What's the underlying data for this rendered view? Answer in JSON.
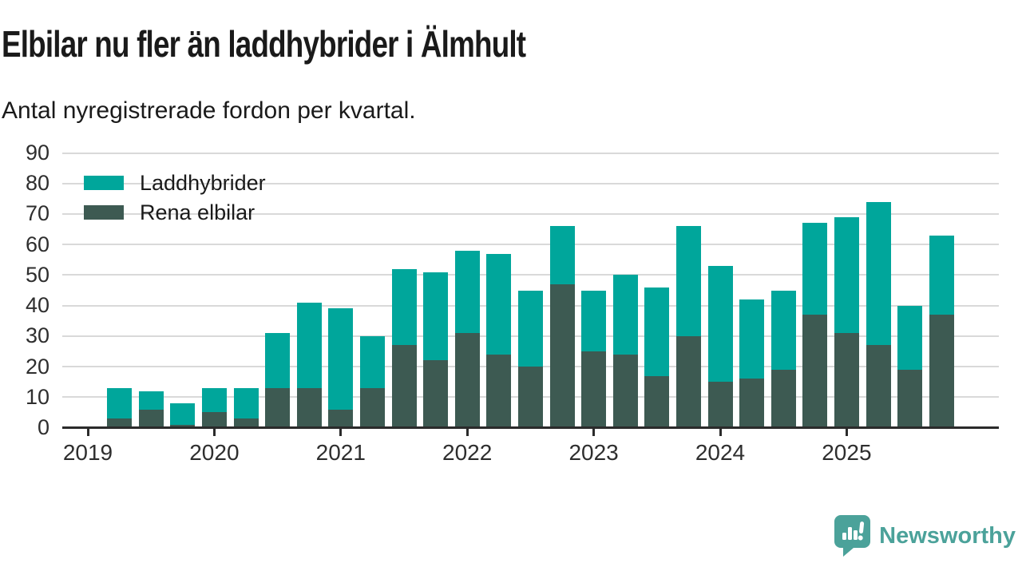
{
  "header": {
    "title": "Elbilar nu fler än laddhybrider i Älmhult",
    "subtitle": "Antal nyregistrerade fordon per kvartal."
  },
  "footer": {
    "brand": "Newsworthy",
    "brand_color": "#4ba29a",
    "logo_icon": "bar-chart-speech-bubble-icon"
  },
  "chart_data": {
    "type": "bar",
    "stacked": true,
    "title": "Elbilar nu fler än laddhybrider i Älmhult",
    "subtitle": "Antal nyregistrerade fordon per kvartal.",
    "xlabel": "",
    "ylabel": "",
    "ylim": [
      0,
      90
    ],
    "yticks": [
      0,
      10,
      20,
      30,
      40,
      50,
      60,
      70,
      80,
      90
    ],
    "grid": "horizontal",
    "legend_position": "top-left",
    "x_tick_labels": [
      "2019",
      "2020",
      "2021",
      "2022",
      "2023",
      "2024",
      "2025"
    ],
    "x": [
      "2019-K2",
      "2019-K3",
      "2019-K4",
      "2020-K1",
      "2020-K2",
      "2020-K3",
      "2020-K4",
      "2021-K1",
      "2021-K2",
      "2021-K3",
      "2021-K4",
      "2022-K1",
      "2022-K2",
      "2022-K3",
      "2022-K4",
      "2023-K1",
      "2023-K2",
      "2023-K3",
      "2023-K4",
      "2024-K1",
      "2024-K2",
      "2024-K3",
      "2024-K4",
      "2025-K1",
      "2025-K2",
      "2025-K3",
      "2025-K4"
    ],
    "series": [
      {
        "name": "Laddhybrider",
        "color": "#00a69b",
        "stack_position": "top",
        "values": [
          10,
          6,
          7,
          8,
          10,
          18,
          28,
          33,
          17,
          25,
          29,
          27,
          33,
          25,
          19,
          20,
          26,
          29,
          36,
          38,
          26,
          26,
          30,
          38,
          47,
          21,
          26
        ]
      },
      {
        "name": "Rena elbilar",
        "color": "#3d5a52",
        "stack_position": "bottom",
        "values": [
          3,
          6,
          1,
          5,
          3,
          13,
          13,
          6,
          13,
          27,
          22,
          31,
          24,
          20,
          47,
          25,
          24,
          17,
          30,
          15,
          16,
          19,
          37,
          31,
          27,
          19,
          37
        ]
      }
    ],
    "stack_totals": [
      13,
      12,
      8,
      13,
      13,
      31,
      41,
      39,
      30,
      52,
      51,
      58,
      57,
      45,
      66,
      45,
      50,
      46,
      66,
      53,
      42,
      45,
      67,
      69,
      74,
      40,
      63
    ]
  }
}
